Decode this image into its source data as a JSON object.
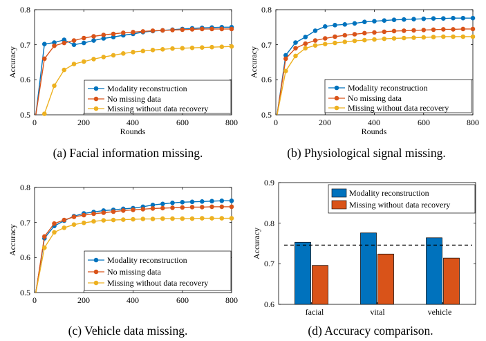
{
  "panels": [
    {
      "caption": "(a) Facial information missing.",
      "chart": {
        "type": "line",
        "xlabel": "Rounds",
        "ylabel": "Accuracy",
        "xlim": [
          0,
          800
        ],
        "ylim": [
          0.5,
          0.8
        ],
        "xticks": [
          "0",
          "200",
          "400",
          "600",
          "800"
        ],
        "yticks": [
          "0.5",
          "0.6",
          "0.7",
          "0.8"
        ],
        "legend_position": "lower-right",
        "series": [
          {
            "name": "Modality reconstruction",
            "color": "#0072BD",
            "x": [
              5,
              40,
              80,
              120,
              160,
              200,
              240,
              280,
              320,
              360,
              400,
              440,
              480,
              520,
              560,
              600,
              640,
              680,
              720,
              760,
              800
            ],
            "y": [
              0.5,
              0.702,
              0.706,
              0.714,
              0.7,
              0.705,
              0.712,
              0.718,
              0.722,
              0.727,
              0.731,
              0.736,
              0.739,
              0.741,
              0.743,
              0.745,
              0.747,
              0.748,
              0.749,
              0.75,
              0.75
            ]
          },
          {
            "name": "No missing data",
            "color": "#D95319",
            "x": [
              5,
              40,
              80,
              120,
              160,
              200,
              240,
              280,
              320,
              360,
              400,
              440,
              480,
              520,
              560,
              600,
              640,
              680,
              720,
              760,
              800
            ],
            "y": [
              0.5,
              0.66,
              0.697,
              0.705,
              0.712,
              0.719,
              0.724,
              0.728,
              0.731,
              0.734,
              0.736,
              0.738,
              0.74,
              0.741,
              0.742,
              0.743,
              0.744,
              0.745,
              0.745,
              0.745,
              0.745
            ]
          },
          {
            "name": "Missing without data recovery",
            "color": "#EDB120",
            "x": [
              40,
              80,
              120,
              160,
              200,
              240,
              280,
              320,
              360,
              400,
              440,
              480,
              520,
              560,
              600,
              640,
              680,
              720,
              760,
              800
            ],
            "y": [
              0.503,
              0.583,
              0.628,
              0.645,
              0.652,
              0.659,
              0.665,
              0.67,
              0.675,
              0.679,
              0.682,
              0.685,
              0.687,
              0.689,
              0.69,
              0.691,
              0.692,
              0.693,
              0.694,
              0.695
            ]
          }
        ]
      }
    },
    {
      "caption": "(b) Physiological signal missing.",
      "chart": {
        "type": "line",
        "xlabel": "Rounds",
        "ylabel": "Accuracy",
        "xlim": [
          0,
          800
        ],
        "ylim": [
          0.5,
          0.8
        ],
        "xticks": [
          "0",
          "200",
          "400",
          "600",
          "800"
        ],
        "yticks": [
          "0.5",
          "0.6",
          "0.7",
          "0.8"
        ],
        "legend_position": "lower-right",
        "series": [
          {
            "name": "Modality reconstruction",
            "color": "#0072BD",
            "x": [
              5,
              40,
              80,
              120,
              160,
              200,
              240,
              280,
              320,
              360,
              400,
              440,
              480,
              520,
              560,
              600,
              640,
              680,
              720,
              760,
              800
            ],
            "y": [
              0.5,
              0.67,
              0.706,
              0.722,
              0.74,
              0.752,
              0.756,
              0.758,
              0.761,
              0.765,
              0.767,
              0.769,
              0.771,
              0.772,
              0.773,
              0.774,
              0.775,
              0.775,
              0.776,
              0.776,
              0.776
            ]
          },
          {
            "name": "No missing data",
            "color": "#D95319",
            "x": [
              5,
              40,
              80,
              120,
              160,
              200,
              240,
              280,
              320,
              360,
              400,
              440,
              480,
              520,
              560,
              600,
              640,
              680,
              720,
              760,
              800
            ],
            "y": [
              0.5,
              0.66,
              0.69,
              0.703,
              0.712,
              0.718,
              0.723,
              0.727,
              0.73,
              0.733,
              0.735,
              0.737,
              0.739,
              0.74,
              0.741,
              0.742,
              0.743,
              0.744,
              0.744,
              0.745,
              0.745
            ]
          },
          {
            "name": "Missing without data recovery",
            "color": "#EDB120",
            "x": [
              5,
              40,
              80,
              120,
              160,
              200,
              240,
              280,
              320,
              360,
              400,
              440,
              480,
              520,
              560,
              600,
              640,
              680,
              720,
              760,
              800
            ],
            "y": [
              0.5,
              0.625,
              0.668,
              0.69,
              0.698,
              0.702,
              0.705,
              0.708,
              0.711,
              0.713,
              0.715,
              0.717,
              0.718,
              0.719,
              0.72,
              0.721,
              0.722,
              0.723,
              0.723,
              0.723,
              0.723
            ]
          }
        ]
      }
    },
    {
      "caption": "(c) Vehicle data missing.",
      "chart": {
        "type": "line",
        "xlabel": "",
        "ylabel": "Accuracy",
        "xlim": [
          0,
          800
        ],
        "ylim": [
          0.5,
          0.8
        ],
        "xticks": [
          "0",
          "200",
          "400",
          "600",
          "800"
        ],
        "yticks": [
          "0.5",
          "0.6",
          "0.7",
          "0.8"
        ],
        "legend_position": "lower-right",
        "series": [
          {
            "name": "Modality reconstruction",
            "color": "#0072BD",
            "x": [
              5,
              40,
              80,
              120,
              160,
              200,
              240,
              280,
              320,
              360,
              400,
              440,
              480,
              520,
              560,
              600,
              640,
              680,
              720,
              760,
              800
            ],
            "y": [
              0.5,
              0.655,
              0.69,
              0.705,
              0.718,
              0.726,
              0.73,
              0.734,
              0.736,
              0.739,
              0.741,
              0.745,
              0.75,
              0.753,
              0.756,
              0.758,
              0.759,
              0.76,
              0.761,
              0.762,
              0.762
            ]
          },
          {
            "name": "No missing data",
            "color": "#D95319",
            "x": [
              5,
              40,
              80,
              120,
              160,
              200,
              240,
              280,
              320,
              360,
              400,
              440,
              480,
              520,
              560,
              600,
              640,
              680,
              720,
              760,
              800
            ],
            "y": [
              0.5,
              0.66,
              0.697,
              0.707,
              0.716,
              0.721,
              0.725,
              0.728,
              0.731,
              0.734,
              0.736,
              0.738,
              0.74,
              0.741,
              0.742,
              0.743,
              0.744,
              0.744,
              0.745,
              0.745,
              0.745
            ]
          },
          {
            "name": "Missing without data recovery",
            "color": "#EDB120",
            "x": [
              5,
              40,
              80,
              120,
              160,
              200,
              240,
              280,
              320,
              360,
              400,
              440,
              480,
              520,
              560,
              600,
              640,
              680,
              720,
              760,
              800
            ],
            "y": [
              0.5,
              0.628,
              0.672,
              0.685,
              0.694,
              0.699,
              0.703,
              0.706,
              0.707,
              0.708,
              0.709,
              0.71,
              0.71,
              0.711,
              0.711,
              0.711,
              0.711,
              0.712,
              0.712,
              0.712,
              0.712
            ]
          }
        ]
      }
    },
    {
      "caption": "(d) Accuracy comparison.",
      "chart": {
        "type": "bar",
        "xlabel": "",
        "ylabel": "Accuracy",
        "ylim": [
          0.6,
          0.9
        ],
        "yticks": [
          "0.6",
          "0.7",
          "0.8",
          "0.9"
        ],
        "categories": [
          "facial",
          "vital",
          "vehicle"
        ],
        "legend_position": "top-right",
        "reference_line": 0.746,
        "series": [
          {
            "name": "Modality reconstruction",
            "color": "#0072BD",
            "values": [
              0.753,
              0.776,
              0.764
            ]
          },
          {
            "name": "Missing without data recovery",
            "color": "#D95319",
            "values": [
              0.696,
              0.724,
              0.714
            ]
          }
        ]
      }
    }
  ]
}
